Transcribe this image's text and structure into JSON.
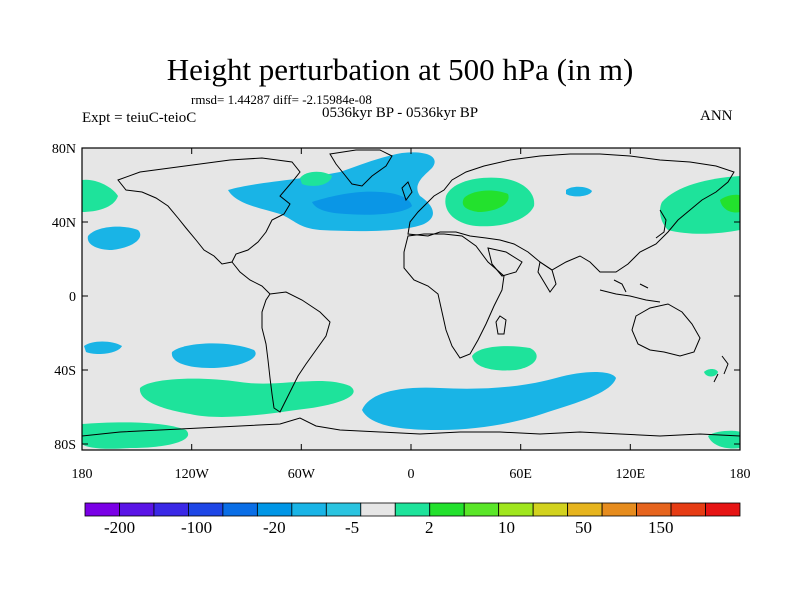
{
  "title": "Height perturbation at 500 hPa (in m)",
  "stats": "rmsd= 1.44287 diff= -2.15984e-08",
  "experiment": "Expt = teiuC-teioC",
  "period": "0536kyr BP - 0536kyr BP",
  "season": "ANN",
  "y_ticks": [
    "80N",
    "40N",
    "0",
    "40S",
    "80S"
  ],
  "x_ticks": [
    "180",
    "120W",
    "60W",
    "0",
    "60E",
    "120E",
    "180"
  ],
  "colorbar": {
    "colors": [
      "#7a00e6",
      "#5a14e6",
      "#3a28e6",
      "#1e46e6",
      "#0a6ee6",
      "#0096e6",
      "#19b4e6",
      "#2ac4e0",
      "#e6e6e6",
      "#1ee39b",
      "#23e12d",
      "#5ae628",
      "#a0e61e",
      "#d2d21e",
      "#e6b41e",
      "#e68c1e",
      "#e6641e",
      "#e63c14",
      "#e61414"
    ],
    "labels": [
      "-200",
      "-100",
      "-20",
      "-5",
      "2",
      "10",
      "50",
      "150"
    ]
  },
  "legend_colors": {
    "neutral": "#e6e6e6",
    "positive": "#1ee39b",
    "positive_strong": "#23e12d",
    "negative": "#19b4e6",
    "negative_strong": "#0a96e6"
  }
}
